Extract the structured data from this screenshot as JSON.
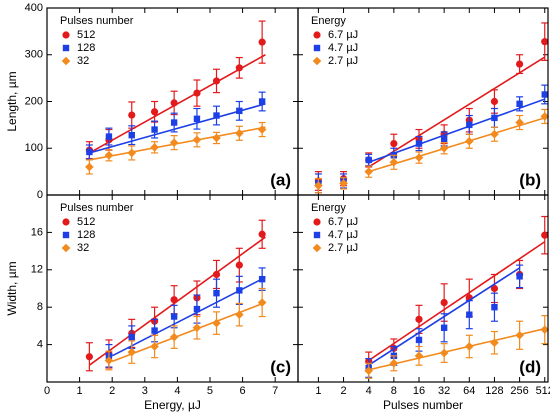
{
  "chart_data": [
    {
      "type": "scatter",
      "panel_label": "(a)",
      "ylabel": "Length, µm",
      "legend_title": "Pulses number",
      "legend": "upper left",
      "xlim": [
        0,
        7.7
      ],
      "xticks": [
        0,
        1,
        2,
        3,
        4,
        5,
        6,
        7
      ],
      "show_xtick_labels": false,
      "ylim": [
        0,
        400
      ],
      "yticks": [
        0,
        100,
        200,
        300,
        400
      ],
      "show_ytick_labels": true,
      "x": [
        1.3,
        1.9,
        2.6,
        3.3,
        3.9,
        4.6,
        5.2,
        5.9,
        6.6
      ],
      "series": [
        {
          "name": "512",
          "color": "#e31a1c",
          "marker": "circle",
          "values": [
            96,
            118,
            171,
            178,
            197,
            218,
            244,
            272,
            327
          ],
          "errors": [
            18,
            22,
            28,
            22,
            25,
            28,
            25,
            22,
            45
          ],
          "fit_x": [
            1.3,
            6.7
          ],
          "fit_y": [
            90,
            300
          ]
        },
        {
          "name": "128",
          "color": "#1d3fe6",
          "marker": "square",
          "values": [
            92,
            125,
            128,
            140,
            155,
            163,
            170,
            180,
            200
          ],
          "errors": [
            15,
            18,
            20,
            18,
            20,
            22,
            20,
            20,
            20
          ],
          "fit_x": [
            1.3,
            6.7
          ],
          "fit_y": [
            90,
            195
          ]
        },
        {
          "name": "32",
          "color": "#f28a1e",
          "marker": "diamond",
          "values": [
            60,
            85,
            90,
            102,
            112,
            118,
            122,
            132,
            140
          ],
          "errors": [
            15,
            12,
            15,
            12,
            15,
            15,
            12,
            15,
            15
          ],
          "fit_x": [
            1.3,
            6.7
          ],
          "fit_y": [
            75,
            145
          ]
        }
      ]
    },
    {
      "type": "scatter",
      "panel_label": "(b)",
      "legend_title": "Energy",
      "legend": "upper left",
      "xlog": true,
      "xlim": [
        0.57,
        560
      ],
      "xticks": [
        1,
        2,
        4,
        8,
        16,
        32,
        64,
        128,
        256,
        512
      ],
      "show_xtick_labels": false,
      "ylim": [
        0,
        400
      ],
      "yticks": [
        0,
        100,
        200,
        300,
        400
      ],
      "show_ytick_labels": false,
      "x": [
        1,
        2,
        4,
        8,
        16,
        32,
        64,
        128,
        256,
        512
      ],
      "series": [
        {
          "name": "6.7 µJ",
          "color": "#e31a1c",
          "marker": "circle",
          "values": [
            30,
            35,
            75,
            110,
            120,
            130,
            160,
            200,
            280,
            328
          ],
          "errors": [
            20,
            15,
            15,
            20,
            20,
            20,
            25,
            25,
            20,
            40
          ],
          "fit_x": [
            4,
            512
          ],
          "fit_y": [
            60,
            295
          ]
        },
        {
          "name": "4.7 µJ",
          "color": "#1d3fe6",
          "marker": "square",
          "values": [
            25,
            30,
            75,
            85,
            110,
            120,
            150,
            165,
            195,
            215
          ],
          "errors": [
            20,
            15,
            12,
            15,
            15,
            15,
            20,
            20,
            15,
            20
          ],
          "fit_x": [
            4,
            512
          ],
          "fit_y": [
            70,
            205
          ]
        },
        {
          "name": "2.7 µJ",
          "color": "#f28a1e",
          "marker": "diamond",
          "values": [
            20,
            25,
            50,
            70,
            80,
            100,
            115,
            130,
            155,
            168
          ],
          "errors": [
            15,
            12,
            12,
            15,
            12,
            12,
            15,
            15,
            15,
            15
          ],
          "fit_x": [
            4,
            512
          ],
          "fit_y": [
            50,
            165
          ]
        }
      ]
    },
    {
      "type": "scatter",
      "panel_label": "(c)",
      "ylabel": "Width, µm",
      "xlabel": "Energy, µJ",
      "legend_title": "Pulses number",
      "legend": "upper left",
      "xlim": [
        0,
        7.7
      ],
      "xticks": [
        0,
        1,
        2,
        3,
        4,
        5,
        6,
        7
      ],
      "show_xtick_labels": true,
      "ylim": [
        0,
        20
      ],
      "yticks": [
        4,
        8,
        12,
        16
      ],
      "show_ytick_labels": true,
      "x": [
        1.3,
        1.9,
        2.6,
        3.3,
        3.9,
        4.6,
        5.2,
        5.9,
        6.6
      ],
      "series": [
        {
          "name": "512",
          "color": "#e31a1c",
          "marker": "circle",
          "values": [
            2.7,
            3.0,
            5.2,
            6.5,
            8.8,
            9.0,
            11.5,
            12.5,
            15.8
          ],
          "errors": [
            1.5,
            1.5,
            1.5,
            1.5,
            1.5,
            1.8,
            1.5,
            1.8,
            1.5
          ],
          "fit_x": [
            1.3,
            6.7
          ],
          "fit_y": [
            1.8,
            15.5
          ]
        },
        {
          "name": "128",
          "color": "#1d3fe6",
          "marker": "square",
          "values": [
            null,
            2.8,
            4.8,
            5.5,
            7.0,
            7.8,
            9.5,
            9.8,
            11.0
          ],
          "errors": [
            null,
            1.2,
            1.2,
            1.2,
            1.2,
            1.5,
            1.5,
            1.5,
            1.2
          ],
          "fit_x": [
            2,
            6.7
          ],
          "fit_y": [
            2.8,
            11.2
          ]
        },
        {
          "name": "32",
          "color": "#f28a1e",
          "marker": "diamond",
          "values": [
            null,
            2.3,
            3.2,
            3.8,
            4.8,
            5.8,
            6.3,
            7.2,
            8.5
          ],
          "errors": [
            null,
            1.0,
            1.2,
            1.2,
            1.2,
            1.2,
            1.2,
            1.2,
            1.5
          ],
          "fit_x": [
            2,
            6.7
          ],
          "fit_y": [
            2.2,
            8.5
          ]
        }
      ]
    },
    {
      "type": "scatter",
      "panel_label": "(d)",
      "xlabel": "Pulses number",
      "legend_title": "Energy",
      "legend": "upper left",
      "xlog": true,
      "xlim": [
        0.57,
        560
      ],
      "xticks": [
        1,
        2,
        4,
        8,
        16,
        32,
        64,
        128,
        256,
        512
      ],
      "show_xtick_labels": true,
      "ylim": [
        0,
        20
      ],
      "yticks": [
        4,
        8,
        12,
        16
      ],
      "show_ytick_labels": false,
      "x": [
        4,
        8,
        16,
        32,
        64,
        128,
        256,
        512
      ],
      "series": [
        {
          "name": "6.7 µJ",
          "color": "#e31a1c",
          "marker": "circle",
          "values": [
            2.2,
            3.6,
            6.7,
            8.5,
            9.0,
            10.0,
            11.5,
            15.7
          ],
          "errors": [
            1,
            1,
            1.5,
            2,
            2,
            1.5,
            1.5,
            2
          ],
          "fit_x": [
            4,
            512
          ],
          "fit_y": [
            2.3,
            15
          ]
        },
        {
          "name": "4.7 µJ",
          "color": "#1d3fe6",
          "marker": "square",
          "values": [
            1.5,
            2.8,
            4.5,
            5.8,
            7.2,
            8.0,
            11.3,
            null
          ],
          "errors": [
            1,
            1,
            1.2,
            1.5,
            1.5,
            1.5,
            1.2,
            null
          ],
          "fit_x": [
            4,
            256
          ],
          "fit_y": [
            1.8,
            12.2
          ]
        },
        {
          "name": "2.7 µJ",
          "color": "#f28a1e",
          "marker": "diamond",
          "values": [
            1.2,
            2.0,
            2.8,
            3.1,
            3.8,
            4.2,
            5.0,
            5.6
          ],
          "errors": [
            0.8,
            0.8,
            1,
            1,
            1.2,
            1.2,
            1.5,
            1.5
          ],
          "fit_x": [
            4,
            512
          ],
          "fit_y": [
            1.3,
            5.7
          ]
        }
      ]
    }
  ]
}
